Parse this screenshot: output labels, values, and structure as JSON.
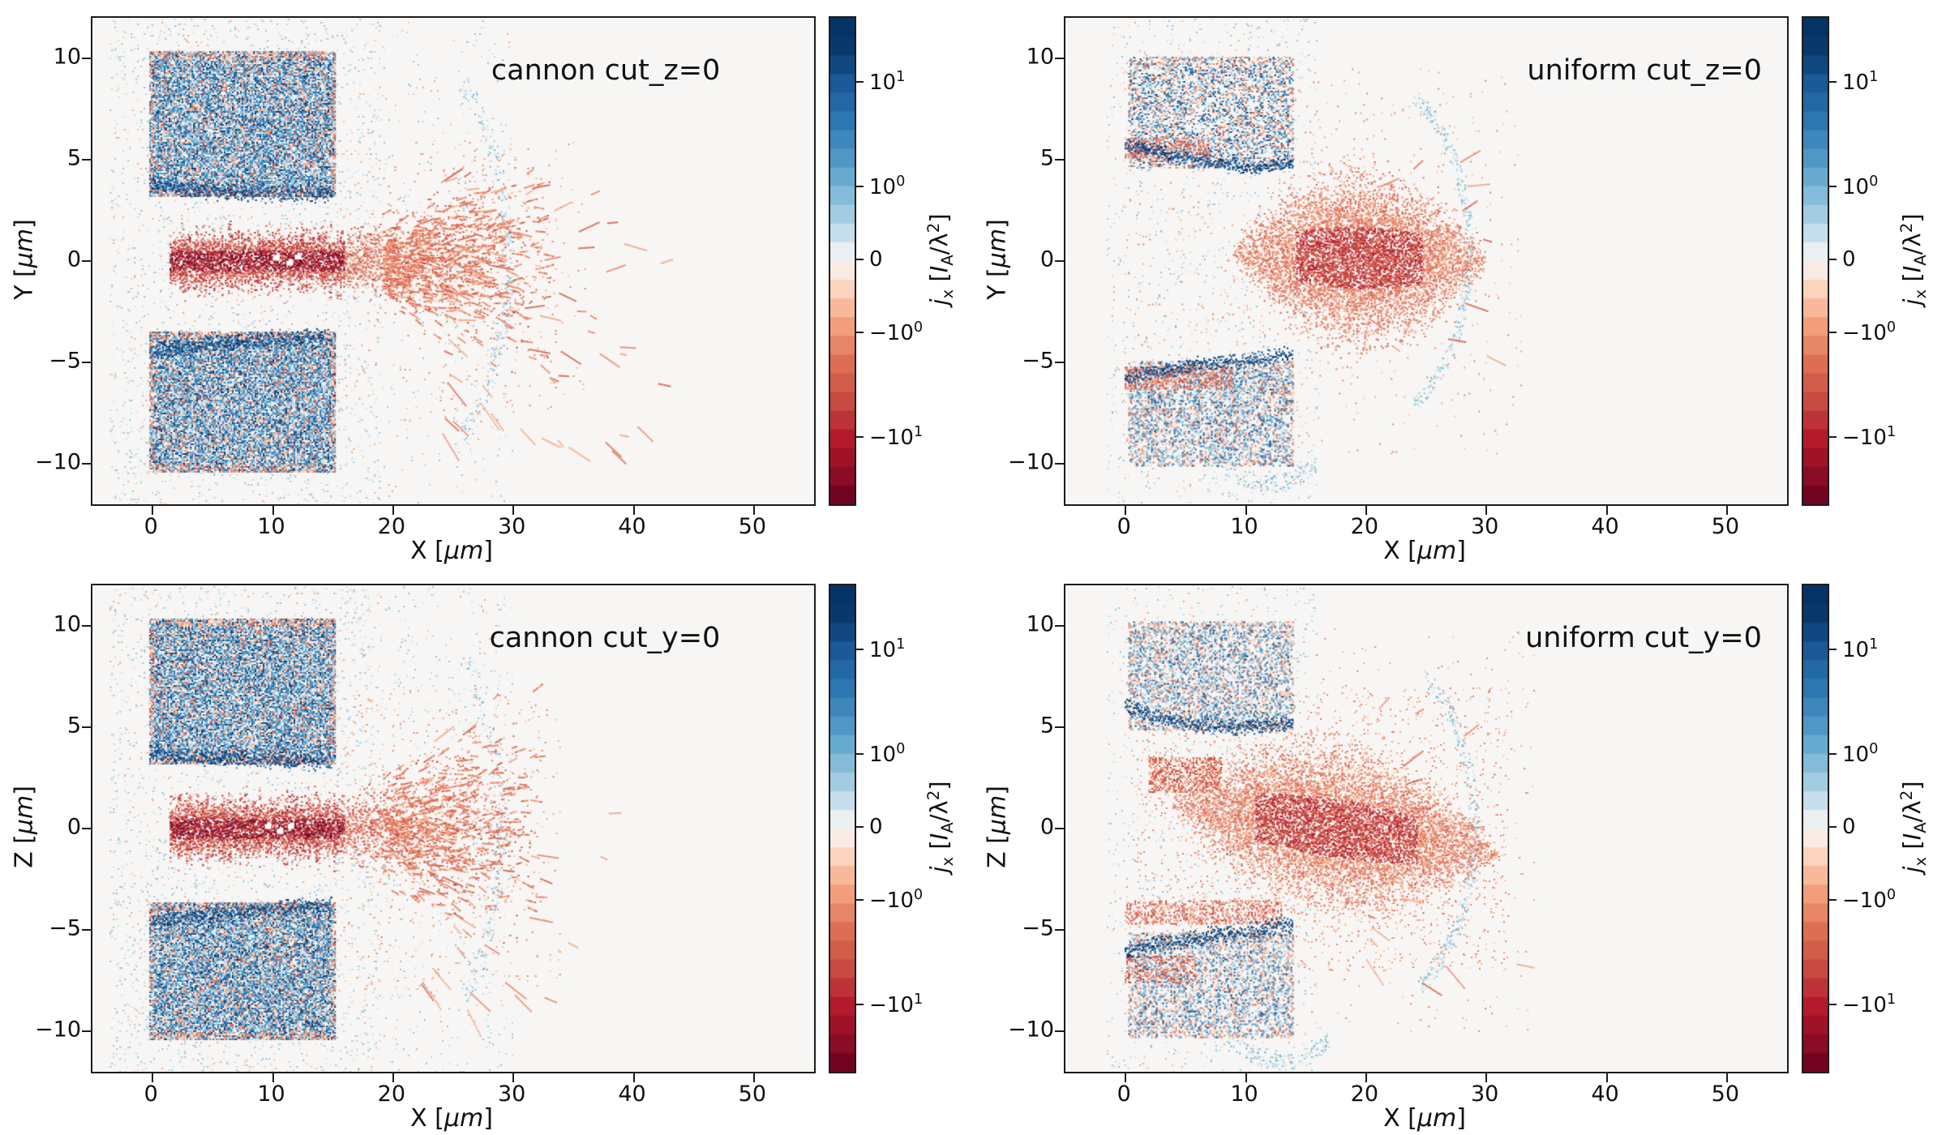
{
  "figure": {
    "background": "#ffffff",
    "library_style": "matplotlib"
  },
  "colors": {
    "cmap": "RdBu",
    "plot_background": "#f7f6f4",
    "spine": "#1c1c1c",
    "dark_blue": "#053061",
    "mid_blue": "#2166ac",
    "light_blue": "#d1e5f0",
    "dark_red": "#67001f",
    "mid_red": "#b2182b",
    "light_red": "#fddbc7"
  },
  "chart_data": [
    {
      "type": "heatmap",
      "annotation": "cannon cut_z=0",
      "ann_right": 0.13,
      "xlabel": "X  [*μm*]",
      "ylabel": "Y  [*μm*]",
      "xlim": [
        -5,
        55
      ],
      "ylim": [
        -12,
        12
      ],
      "xticks": [
        0,
        10,
        20,
        30,
        40,
        50
      ],
      "yticks": [
        -10,
        -5,
        0,
        5,
        10
      ],
      "grid": false,
      "seed": 11,
      "colorbar": {
        "label": "*j*_{x}  [*I*_{A}/λ^{2}]",
        "scale": "symlog",
        "ticks": [
          {
            "label": "10^{1}",
            "pos": 0.135
          },
          {
            "label": "10^{0}",
            "pos": 0.35
          },
          {
            "label": "0",
            "pos": 0.5
          },
          {
            "label": "−10^{0}",
            "pos": 0.65
          },
          {
            "label": "−10^{1}",
            "pos": 0.865
          }
        ]
      },
      "features": {
        "slabs": [
          {
            "x0": -0.2,
            "x1": 15.2,
            "y0": 3.2,
            "y1": 10.4,
            "density": 0.82,
            "redFrac": 0.2
          },
          {
            "x0": -0.2,
            "x1": 15.2,
            "y0": -10.4,
            "y1": -3.5,
            "density": 0.82,
            "redFrac": 0.2
          }
        ],
        "edge_lines": [
          {
            "pts": [
              [
                -0.2,
                3.8
              ],
              [
                3,
                3.55
              ],
              [
                7,
                3.4
              ],
              [
                11,
                3.3
              ],
              [
                15,
                3.3
              ]
            ],
            "w": 0.5
          },
          {
            "pts": [
              [
                -0.2,
                -4.5
              ],
              [
                3,
                -4.25
              ],
              [
                7,
                -4.0
              ],
              [
                11,
                -3.8
              ],
              [
                15,
                -3.7
              ]
            ],
            "w": 0.5
          }
        ],
        "red_bands": [],
        "jet": {
          "kind": "beam",
          "x0": 1.5,
          "x1": 16,
          "x2": 33,
          "yc0": 0,
          "yc1": 0,
          "hw0": 1.2,
          "hw1": 4.8,
          "coreDensity": 0.95,
          "coneDensity": 0.5,
          "whiteSpecks": [
            [
              10.3,
              0.15
            ],
            [
              11.4,
              -0.1
            ],
            [
              12.1,
              0.2
            ]
          ]
        },
        "streaks": {
          "x0": 24,
          "x1": 46,
          "y0": -9.5,
          "y1": 4.5,
          "count": 80,
          "ox": 14,
          "oy": 0
        },
        "halos": [
          {
            "x0": -3.5,
            "x1": 19,
            "density": 0.05
          },
          {
            "x0": 19,
            "x1": 30,
            "density": 0.012
          }
        ],
        "arcs": [
          {
            "cx": 17,
            "cy": 0,
            "r": 12.5,
            "a0": -45,
            "a1": 45,
            "count": 260,
            "jitter": 0.5
          }
        ],
        "red_speckle": [
          {
            "x0": 16,
            "x1": 36,
            "y0": -8,
            "y1": 6,
            "density": 0.012
          }
        ]
      }
    },
    {
      "type": "heatmap",
      "annotation": "uniform cut_z=0",
      "ann_right": 0.035,
      "xlabel": "X  [*μm*]",
      "ylabel": "Y  [*μm*]",
      "xlim": [
        -5,
        55
      ],
      "ylim": [
        -12,
        12
      ],
      "xticks": [
        0,
        10,
        20,
        30,
        40,
        50
      ],
      "yticks": [
        -10,
        -5,
        0,
        5,
        10
      ],
      "grid": false,
      "seed": 22,
      "colorbar": {
        "label": "*j*_{x}  [*I*_{A}/λ^{2}]",
        "scale": "symlog",
        "ticks": [
          {
            "label": "10^{1}",
            "pos": 0.135
          },
          {
            "label": "10^{0}",
            "pos": 0.35
          },
          {
            "label": "0",
            "pos": 0.5
          },
          {
            "label": "−10^{0}",
            "pos": 0.65
          },
          {
            "label": "−10^{1}",
            "pos": 0.865
          }
        ]
      },
      "features": {
        "slabs": [
          {
            "x0": 0.3,
            "x1": 14,
            "y0": 4.6,
            "y1": 10.1,
            "density": 0.45,
            "redFrac": 0.3
          },
          {
            "x0": 0.3,
            "x1": 14,
            "y0": -10.1,
            "y1": -4.9,
            "density": 0.45,
            "redFrac": 0.3
          }
        ],
        "edge_lines": [
          {
            "pts": [
              [
                0,
                5.8
              ],
              [
                2,
                5.5
              ],
              [
                5,
                5.1
              ],
              [
                8,
                4.8
              ],
              [
                11,
                4.6
              ],
              [
                14,
                4.9
              ]
            ],
            "w": 0.4
          },
          {
            "pts": [
              [
                0,
                -5.8
              ],
              [
                3,
                -5.4
              ],
              [
                6,
                -5.1
              ],
              [
                10,
                -4.9
              ],
              [
                14,
                -4.6
              ]
            ],
            "w": 0.45
          }
        ],
        "red_bands": [
          {
            "x0": 0,
            "x1": 7,
            "y0": 5.1,
            "y1": 6.1,
            "density": 0.4
          },
          {
            "x0": 0,
            "x1": 9,
            "y0": -6.3,
            "y1": -5.2,
            "density": 0.45
          }
        ],
        "jet": {
          "kind": "plume",
          "x0": 9,
          "x2": 30,
          "yc0": 0.3,
          "yc1": 0,
          "hwmax": 3.6,
          "density": 0.8
        },
        "streaks": {
          "x0": 20,
          "x1": 36,
          "y0": -6,
          "y1": 6,
          "count": 16,
          "ox": 12,
          "oy": 0
        },
        "halos": [
          {
            "x0": -1.5,
            "x1": 16,
            "density": 0.03
          }
        ],
        "arcs": [
          {
            "cx": 20,
            "cy": 0.5,
            "r": 8.6,
            "a0": -62,
            "a1": 62,
            "count": 320,
            "jitter": 0.35
          },
          {
            "cx": 12,
            "cy": -3,
            "r": 8,
            "a0": 230,
            "a1": 300,
            "count": 150,
            "jitter": 0.4
          }
        ],
        "red_speckle": [
          {
            "x0": 0,
            "x1": 33,
            "y0": -9.5,
            "y1": 9.5,
            "density": 0.01
          }
        ]
      }
    },
    {
      "type": "heatmap",
      "annotation": "cannon cut_y=0",
      "ann_right": 0.13,
      "xlabel": "X  [*μm*]",
      "ylabel": "Z  [*μm*]",
      "xlim": [
        -5,
        55
      ],
      "ylim": [
        -12,
        12
      ],
      "xticks": [
        0,
        10,
        20,
        30,
        40,
        50
      ],
      "yticks": [
        -10,
        -5,
        0,
        5,
        10
      ],
      "grid": false,
      "seed": 33,
      "colorbar": {
        "label": "*j*_{x}  [*I*_{A}/λ^{2}]",
        "scale": "symlog",
        "ticks": [
          {
            "label": "10^{1}",
            "pos": 0.135
          },
          {
            "label": "10^{0}",
            "pos": 0.35
          },
          {
            "label": "0",
            "pos": 0.5
          },
          {
            "label": "−10^{0}",
            "pos": 0.65
          },
          {
            "label": "−10^{1}",
            "pos": 0.865
          }
        ]
      },
      "features": {
        "slabs": [
          {
            "x0": -0.2,
            "x1": 15.2,
            "y0": 3.2,
            "y1": 10.4,
            "density": 0.82,
            "redFrac": 0.2
          },
          {
            "x0": -0.2,
            "x1": 15.2,
            "y0": -10.4,
            "y1": -3.6,
            "density": 0.82,
            "redFrac": 0.2
          }
        ],
        "edge_lines": [
          {
            "pts": [
              [
                -0.2,
                3.8
              ],
              [
                3,
                3.55
              ],
              [
                7,
                3.45
              ],
              [
                11,
                3.35
              ],
              [
                15,
                3.3
              ]
            ],
            "w": 0.5
          },
          {
            "pts": [
              [
                -0.2,
                -4.6
              ],
              [
                3,
                -4.35
              ],
              [
                7,
                -4.1
              ],
              [
                11,
                -3.9
              ],
              [
                15,
                -3.8
              ]
            ],
            "w": 0.5
          }
        ],
        "red_bands": [],
        "jet": {
          "kind": "beam",
          "x0": 1.5,
          "x1": 16,
          "x2": 32,
          "yc0": 0,
          "yc1": 0,
          "hw0": 1.3,
          "hw1": 5.5,
          "coreDensity": 0.95,
          "coneDensity": 0.45,
          "whiteSpecks": [
            [
              9.6,
              0.1
            ],
            [
              10.6,
              -0.15
            ],
            [
              11.5,
              0.1
            ]
          ]
        },
        "streaks": {
          "x0": 22,
          "x1": 40,
          "y0": -9,
          "y1": 5,
          "count": 40,
          "ox": 14,
          "oy": 0
        },
        "halos": [
          {
            "x0": -3.5,
            "x1": 19,
            "density": 0.055
          },
          {
            "x0": 19,
            "x1": 30,
            "density": 0.02
          }
        ],
        "arcs": [
          {
            "cx": 16,
            "cy": 0,
            "r": 13,
            "a0": -40,
            "a1": 40,
            "count": 200,
            "jitter": 0.5
          }
        ],
        "red_speckle": [
          {
            "x0": 15,
            "x1": 34,
            "y0": -8,
            "y1": 7,
            "density": 0.015
          }
        ]
      }
    },
    {
      "type": "heatmap",
      "annotation": "uniform cut_y=0",
      "ann_right": 0.035,
      "xlabel": "X  [*μm*]",
      "ylabel": "Z  [*μm*]",
      "xlim": [
        -5,
        55
      ],
      "ylim": [
        -12,
        12
      ],
      "xticks": [
        0,
        10,
        20,
        30,
        40,
        50
      ],
      "yticks": [
        -10,
        -5,
        0,
        5,
        10
      ],
      "grid": false,
      "seed": 44,
      "colorbar": {
        "label": "*j*_{x}  [*I*_{A}/λ^{2}]",
        "scale": "symlog",
        "ticks": [
          {
            "label": "10^{1}",
            "pos": 0.135
          },
          {
            "label": "10^{0}",
            "pos": 0.35
          },
          {
            "label": "0",
            "pos": 0.5
          },
          {
            "label": "−10^{0}",
            "pos": 0.65
          },
          {
            "label": "−10^{1}",
            "pos": 0.865
          }
        ]
      },
      "features": {
        "slabs": [
          {
            "x0": 0.3,
            "x1": 14,
            "y0": 4.9,
            "y1": 10.2,
            "density": 0.42,
            "redFrac": 0.3
          },
          {
            "x0": 0.3,
            "x1": 14,
            "y0": -10.3,
            "y1": -5.1,
            "density": 0.42,
            "redFrac": 0.3
          }
        ],
        "edge_lines": [
          {
            "pts": [
              [
                0,
                6.0
              ],
              [
                2,
                5.6
              ],
              [
                5,
                5.2
              ],
              [
                9,
                4.95
              ],
              [
                14,
                5.2
              ]
            ],
            "w": 0.45
          },
          {
            "pts": [
              [
                0,
                -6.1
              ],
              [
                3,
                -5.7
              ],
              [
                7,
                -5.3
              ],
              [
                11,
                -5.0
              ],
              [
                14,
                -4.8
              ]
            ],
            "w": 0.5
          }
        ],
        "red_bands": [
          {
            "x0": 2,
            "x1": 8,
            "y0": 1.8,
            "y1": 3.5,
            "density": 0.5
          },
          {
            "x0": 0,
            "x1": 13,
            "y0": -4.7,
            "y1": -3.5,
            "density": 0.4
          },
          {
            "x0": 0,
            "x1": 6,
            "y0": -7.6,
            "y1": -6.3,
            "density": 0.3
          }
        ],
        "jet": {
          "kind": "plume",
          "x0": 4,
          "x2": 31,
          "yc0": 1.2,
          "yc1": -1.2,
          "hwmax": 3.4,
          "density": 0.75
        },
        "streaks": {
          "x0": 20,
          "x1": 38,
          "y0": -8,
          "y1": 6,
          "count": 22,
          "ox": 12,
          "oy": 0
        },
        "halos": [
          {
            "x0": -1.5,
            "x1": 16,
            "density": 0.03
          }
        ],
        "arcs": [
          {
            "cx": 20,
            "cy": 0,
            "r": 9,
            "a0": -60,
            "a1": 58,
            "count": 300,
            "jitter": 0.4
          },
          {
            "cx": 13,
            "cy": -3.5,
            "r": 8,
            "a0": 235,
            "a1": 300,
            "count": 160,
            "jitter": 0.4
          }
        ],
        "red_speckle": [
          {
            "x0": 1,
            "x1": 32,
            "y0": -7,
            "y1": 7,
            "density": 0.04
          },
          {
            "x0": 0,
            "x1": 34,
            "y0": -10,
            "y1": 10,
            "density": 0.008
          }
        ]
      }
    }
  ]
}
